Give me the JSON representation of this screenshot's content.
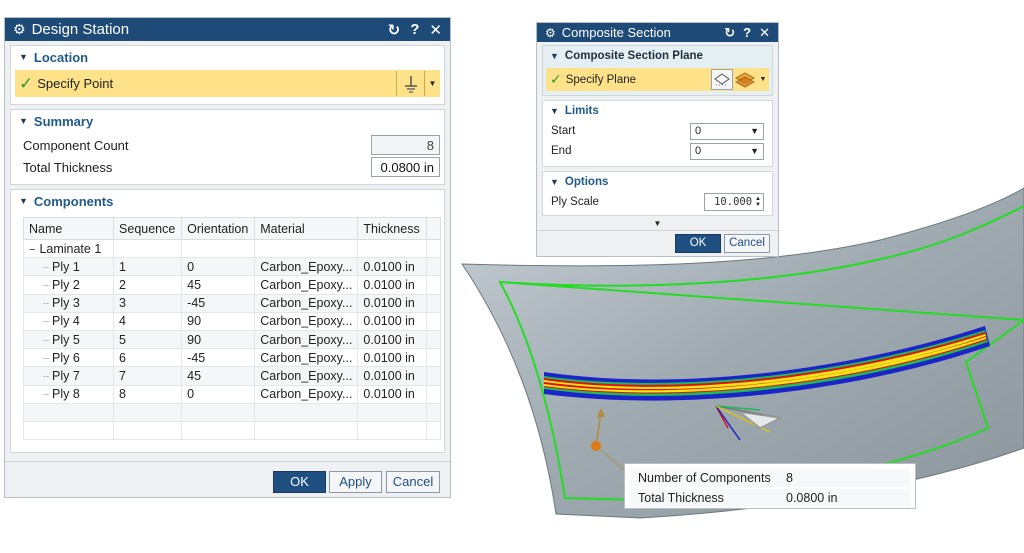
{
  "design_station": {
    "title": "Design Station",
    "title_buttons": [
      "↻",
      "?",
      "✕"
    ],
    "location": {
      "header": "Location",
      "specify_point": "Specify Point"
    },
    "summary": {
      "header": "Summary",
      "component_count_label": "Component Count",
      "component_count_value": "8",
      "total_thickness_label": "Total Thickness",
      "total_thickness_value": "0.0800 in"
    },
    "components": {
      "header": "Components",
      "columns": [
        "Name",
        "Sequence",
        "Orientation",
        "Material",
        "Thickness"
      ],
      "laminate": "Laminate 1",
      "plies": [
        {
          "name": "Ply 1",
          "sequence": "1",
          "orientation": "0",
          "material": "Carbon_Epoxy...",
          "thickness": "0.0100 in"
        },
        {
          "name": "Ply 2",
          "sequence": "2",
          "orientation": "45",
          "material": "Carbon_Epoxy...",
          "thickness": "0.0100 in"
        },
        {
          "name": "Ply 3",
          "sequence": "3",
          "orientation": "-45",
          "material": "Carbon_Epoxy...",
          "thickness": "0.0100 in"
        },
        {
          "name": "Ply 4",
          "sequence": "4",
          "orientation": "90",
          "material": "Carbon_Epoxy...",
          "thickness": "0.0100 in"
        },
        {
          "name": "Ply 5",
          "sequence": "5",
          "orientation": "90",
          "material": "Carbon_Epoxy...",
          "thickness": "0.0100 in"
        },
        {
          "name": "Ply 6",
          "sequence": "6",
          "orientation": "-45",
          "material": "Carbon_Epoxy...",
          "thickness": "0.0100 in"
        },
        {
          "name": "Ply 7",
          "sequence": "7",
          "orientation": "45",
          "material": "Carbon_Epoxy...",
          "thickness": "0.0100 in"
        },
        {
          "name": "Ply 8",
          "sequence": "8",
          "orientation": "0",
          "material": "Carbon_Epoxy...",
          "thickness": "0.0100 in"
        }
      ]
    },
    "buttons": {
      "ok": "OK",
      "apply": "Apply",
      "cancel": "Cancel"
    }
  },
  "composite_section": {
    "title": "Composite Section",
    "title_buttons": [
      "↻",
      "?",
      "✕"
    ],
    "plane": {
      "header": "Composite Section Plane",
      "specify_plane": "Specify Plane"
    },
    "limits": {
      "header": "Limits",
      "start_label": "Start",
      "start_value": "0",
      "end_label": "End",
      "end_value": "0"
    },
    "options": {
      "header": "Options",
      "ply_scale_label": "Ply Scale",
      "ply_scale_value": "10.000"
    },
    "buttons": {
      "ok": "OK",
      "cancel": "Cancel"
    }
  },
  "info_box": {
    "number_of_components_label": "Number of Components",
    "number_of_components_value": "8",
    "total_thickness_label": "Total Thickness",
    "total_thickness_value": "0.0800 in"
  },
  "colors": {
    "titlebar": "#1e4a78",
    "selection_highlight": "#fde28a",
    "surface": "#9aa5ac",
    "boundary": "#22dd22",
    "ply_red": "#e11111",
    "ply_yellow": "#f5e51a",
    "ply_blue": "#1a24c8",
    "ply_green": "#1fb85a"
  }
}
